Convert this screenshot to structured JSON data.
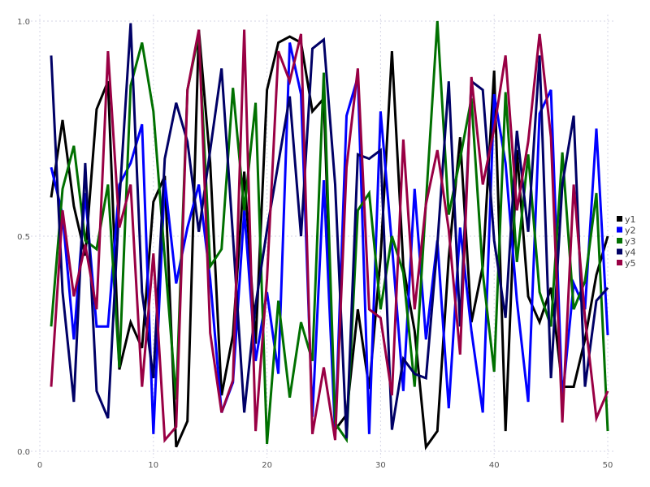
{
  "chart_data": {
    "type": "line",
    "title": "",
    "xlabel": "",
    "ylabel": "",
    "xlim": [
      0,
      50
    ],
    "ylim": [
      0,
      1
    ],
    "grid": true,
    "legend_position": "right",
    "x_ticks": [
      "0",
      "10",
      "20",
      "30",
      "40",
      "50"
    ],
    "y_ticks": [
      "0.0",
      "0.5",
      "1.0"
    ],
    "x": [
      1,
      2,
      3,
      4,
      5,
      6,
      7,
      8,
      9,
      10,
      11,
      12,
      13,
      14,
      15,
      16,
      17,
      18,
      19,
      20,
      21,
      22,
      23,
      24,
      25,
      26,
      27,
      28,
      29,
      30,
      31,
      32,
      33,
      34,
      35,
      36,
      37,
      38,
      39,
      40,
      41,
      42,
      43,
      44,
      45,
      46,
      47,
      48,
      49,
      50
    ],
    "series": [
      {
        "name": "y1",
        "color": "#000000",
        "values": [
          0.59,
          0.77,
          0.57,
          0.455,
          0.795,
          0.86,
          0.19,
          0.3,
          0.24,
          0.58,
          0.64,
          0.01,
          0.07,
          0.98,
          0.67,
          0.13,
          0.27,
          0.65,
          0.25,
          0.84,
          0.95,
          0.964,
          0.95,
          0.79,
          0.82,
          0.05,
          0.085,
          0.33,
          0.145,
          0.45,
          0.93,
          0.43,
          0.28,
          0.01,
          0.047,
          0.45,
          0.73,
          0.3,
          0.43,
          0.885,
          0.047,
          0.7,
          0.36,
          0.3,
          0.38,
          0.15,
          0.15,
          0.26,
          0.41,
          0.5
        ]
      },
      {
        "name": "y2",
        "color": "#0000ff",
        "values": [
          0.66,
          0.55,
          0.26,
          0.6,
          0.29,
          0.29,
          0.62,
          0.67,
          0.76,
          0.04,
          0.63,
          0.39,
          0.52,
          0.62,
          0.4,
          0.09,
          0.16,
          0.56,
          0.21,
          0.37,
          0.18,
          0.95,
          0.83,
          0.08,
          0.63,
          0.04,
          0.78,
          0.87,
          0.04,
          0.79,
          0.48,
          0.14,
          0.61,
          0.26,
          0.49,
          0.1,
          0.52,
          0.28,
          0.09,
          0.83,
          0.67,
          0.35,
          0.115,
          0.785,
          0.84,
          0.12,
          0.39,
          0.33,
          0.75,
          0.27
        ]
      },
      {
        "name": "y3",
        "color": "#007000",
        "values": [
          0.29,
          0.61,
          0.71,
          0.49,
          0.47,
          0.62,
          0.195,
          0.85,
          0.95,
          0.79,
          0.45,
          0.12,
          0.84,
          0.97,
          0.43,
          0.47,
          0.845,
          0.56,
          0.81,
          0.017,
          0.35,
          0.125,
          0.3,
          0.21,
          0.88,
          0.065,
          0.027,
          0.56,
          0.6,
          0.33,
          0.5,
          0.415,
          0.15,
          0.58,
          1.0,
          0.55,
          0.68,
          0.82,
          0.415,
          0.185,
          0.835,
          0.44,
          0.69,
          0.37,
          0.29,
          0.695,
          0.33,
          0.395,
          0.6,
          0.047
        ]
      },
      {
        "name": "y4",
        "color": "#000066",
        "values": [
          0.92,
          0.37,
          0.115,
          0.67,
          0.14,
          0.077,
          0.58,
          0.995,
          0.37,
          0.17,
          0.68,
          0.81,
          0.72,
          0.51,
          0.7,
          0.89,
          0.5,
          0.09,
          0.34,
          0.515,
          0.67,
          0.825,
          0.5,
          0.936,
          0.957,
          0.62,
          0.03,
          0.69,
          0.68,
          0.7,
          0.05,
          0.215,
          0.18,
          0.17,
          0.48,
          0.86,
          0.29,
          0.86,
          0.84,
          0.49,
          0.31,
          0.745,
          0.51,
          0.92,
          0.17,
          0.62,
          0.78,
          0.15,
          0.35,
          0.38
        ]
      },
      {
        "name": "y5",
        "color": "#990044",
        "values": [
          0.15,
          0.56,
          0.36,
          0.48,
          0.33,
          0.93,
          0.52,
          0.62,
          0.15,
          0.46,
          0.026,
          0.057,
          0.84,
          0.98,
          0.275,
          0.09,
          0.165,
          0.98,
          0.047,
          0.4,
          0.93,
          0.86,
          0.97,
          0.04,
          0.195,
          0.026,
          0.66,
          0.89,
          0.33,
          0.31,
          0.13,
          0.725,
          0.33,
          0.575,
          0.7,
          0.515,
          0.225,
          0.87,
          0.62,
          0.75,
          0.92,
          0.56,
          0.72,
          0.97,
          0.73,
          0.067,
          0.62,
          0.31,
          0.077,
          0.14
        ]
      }
    ]
  }
}
